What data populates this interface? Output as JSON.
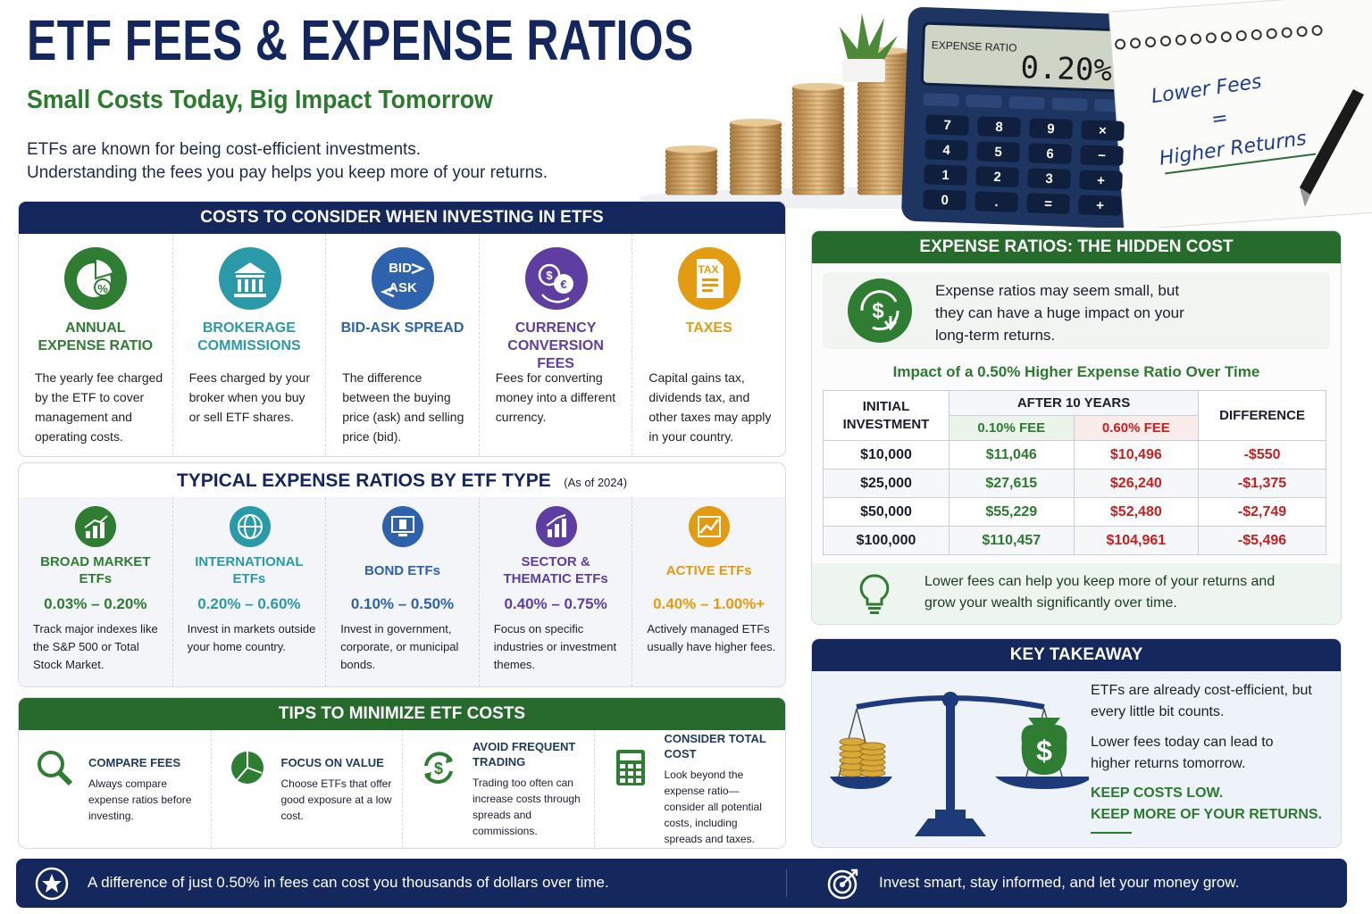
{
  "header": {
    "title": "ETF FEES & EXPENSE RATIOS",
    "subtitle": "Small Costs Today, Big Impact Tomorrow",
    "intro": [
      "ETFs are known for being cost-efficient investments.",
      "Understanding the fees you pay helps you keep more of your returns."
    ]
  },
  "illustration": {
    "calculator_label": "EXPENSE RATIO",
    "calculator_display": "0.20%",
    "calculator_keys": [
      "7",
      "8",
      "9",
      "×",
      "4",
      "5",
      "6",
      "−",
      "1",
      "2",
      "3",
      "+",
      "0",
      ".",
      "=",
      "+"
    ],
    "notepad": [
      "Lower Fees",
      "=",
      "Higher Returns"
    ]
  },
  "costs": {
    "title": "COSTS TO CONSIDER WHEN INVESTING IN ETFS",
    "items": [
      {
        "icon": [
          "%"
        ],
        "title": "ANNUAL EXPENSE RATIO",
        "text": "The yearly fee charged by the ETF to cover management and operating costs."
      },
      {
        "title": "BROKERAGE COMMISSIONS",
        "text": "Fees charged by your broker when you buy or sell ETF shares."
      },
      {
        "icon": [
          "BID",
          "ASK"
        ],
        "title": "BID-ASK SPREAD",
        "text": "The difference between the buying price (ask) and selling price (bid)."
      },
      {
        "icon": [
          "$",
          "€"
        ],
        "title": "CURRENCY CONVERSION FEES",
        "text": "Fees for converting money into a different currency."
      },
      {
        "icon": [
          "TAX"
        ],
        "title": "TAXES",
        "text": "Capital gains tax, dividends tax, and other taxes may apply in your country."
      }
    ]
  },
  "types": {
    "title": "TYPICAL EXPENSE RATIOS BY ETF TYPE",
    "note": "(As of 2024)",
    "items": [
      {
        "title": "BROAD MARKET ETFs",
        "range": "0.03% – 0.20%",
        "text": "Track major indexes like the S&P 500 or Total Stock Market."
      },
      {
        "title": "INTERNATIONAL ETFs",
        "range": "0.20% – 0.60%",
        "text": "Invest in markets outside your home country."
      },
      {
        "title": "BOND ETFs",
        "range": "0.10% – 0.50%",
        "text": "Invest in government, corporate, or municipal bonds."
      },
      {
        "title": "SECTOR & THEMATIC ETFs",
        "range": "0.40% – 0.75%",
        "text": "Focus on specific industries or investment themes."
      },
      {
        "title": "ACTIVE ETFs",
        "range": "0.40% – 1.00%+",
        "text": "Actively managed ETFs usually have higher fees."
      }
    ]
  },
  "tips": {
    "title": "TIPS TO MINIMIZE ETF COSTS",
    "items": [
      {
        "title": "COMPARE FEES",
        "text": "Always compare expense ratios before investing."
      },
      {
        "title": "FOCUS ON VALUE",
        "text": "Choose ETFs that offer good exposure at a low cost."
      },
      {
        "icon": "$",
        "title": "AVOID FREQUENT TRADING",
        "text": "Trading too often can increase costs through spreads and commissions."
      },
      {
        "title": "CONSIDER TOTAL COST",
        "text": "Look beyond the expense ratio—consider all potential costs, including spreads and taxes."
      }
    ]
  },
  "hidden_cost": {
    "title": "EXPENSE RATIOS: THE HIDDEN COST",
    "icon": "$",
    "text": "Expense ratios may seem small, but they can have a huge impact on your long-term returns.",
    "table": {
      "title": "Impact of a 0.50% Higher Expense Ratio Over Time",
      "headers": {
        "initial": "INITIAL INVESTMENT",
        "after": "AFTER 10 YEARS",
        "low": "0.10% FEE",
        "high": "0.60% FEE",
        "difference": "DIFFERENCE"
      },
      "rows": [
        [
          "$10,000",
          "$11,046",
          "$10,496",
          "-$550"
        ],
        [
          "$25,000",
          "$27,615",
          "$26,240",
          "-$1,375"
        ],
        [
          "$50,000",
          "$55,229",
          "$52,480",
          "-$2,749"
        ],
        [
          "$100,000",
          "$110,457",
          "$104,961",
          "-$5,496"
        ]
      ]
    },
    "tip": "Lower fees can help you keep more of your returns and grow your wealth significantly over time."
  },
  "takeaway": {
    "title": "KEY TAKEAWAY",
    "bag_symbol": "$",
    "lines": [
      "ETFs are already cost-efficient, but every little bit counts.",
      "Lower fees today can lead to higher returns tomorrow."
    ],
    "emphasis": [
      "KEEP COSTS LOW.",
      "KEEP MORE OF YOUR RETURNS."
    ]
  },
  "footer": [
    "A difference of just 0.50% in fees can cost you thousands of dollars over time.",
    "Invest smart, stay informed, and let your money grow."
  ]
}
